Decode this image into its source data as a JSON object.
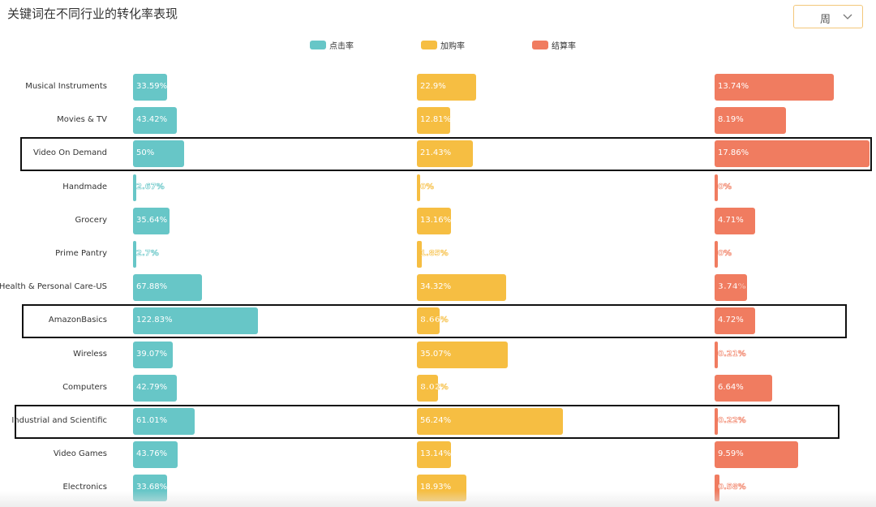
{
  "title": "关键词在不同行业的转化率表现",
  "dropdown": {
    "selected": "周"
  },
  "chart_data": {
    "type": "bar",
    "orientation": "horizontal",
    "categories": [
      "Musical Instruments",
      "Movies & TV",
      "Video On Demand",
      "Handmade",
      "Grocery",
      "Prime Pantry",
      "Health & Personal Care-US",
      "AmazonBasics",
      "Wireless",
      "Computers",
      "Industrial and Scientific",
      "Video Games",
      "Electronics"
    ],
    "series": [
      {
        "name": "点击率",
        "color": "#67c6c7",
        "values": [
          33.59,
          43.42,
          50,
          2.67,
          35.64,
          2.7,
          67.88,
          122.83,
          39.07,
          42.79,
          61.01,
          43.76,
          33.68
        ],
        "labels": [
          "33.59%",
          "43.42%",
          "50%",
          "2.67%",
          "35.64%",
          "2.7%",
          "67.88%",
          "122.83%",
          "39.07%",
          "42.79%",
          "61.01%",
          "43.76%",
          "33.68%"
        ]
      },
      {
        "name": "加购率",
        "color": "#f6be42",
        "values": [
          22.9,
          12.81,
          21.43,
          0,
          13.16,
          1.85,
          34.32,
          8.66,
          35.07,
          8.02,
          56.24,
          13.14,
          18.93
        ],
        "labels": [
          "22.9%",
          "12.81%",
          "21.43%",
          "0%",
          "13.16%",
          "1.85%",
          "34.32%",
          "8.66%",
          "35.07%",
          "8.02%",
          "56.24%",
          "13.14%",
          "18.93%"
        ]
      },
      {
        "name": "结算率",
        "color": "#f07c60",
        "values": [
          13.74,
          8.19,
          17.86,
          0,
          4.71,
          0,
          3.74,
          4.72,
          0.21,
          6.64,
          0.22,
          9.59,
          0.58
        ],
        "labels": [
          "13.74%",
          "8.19%",
          "17.86%",
          "0%",
          "4.71%",
          "0%",
          "3.74%",
          "4.72%",
          "0.21%",
          "6.64%",
          "0.22%",
          "9.59%",
          "0.58%"
        ]
      }
    ],
    "legend": "top-center",
    "highlighted": [
      "Video On Demand",
      "AmazonBasics",
      "Industrial and Scientific"
    ]
  }
}
